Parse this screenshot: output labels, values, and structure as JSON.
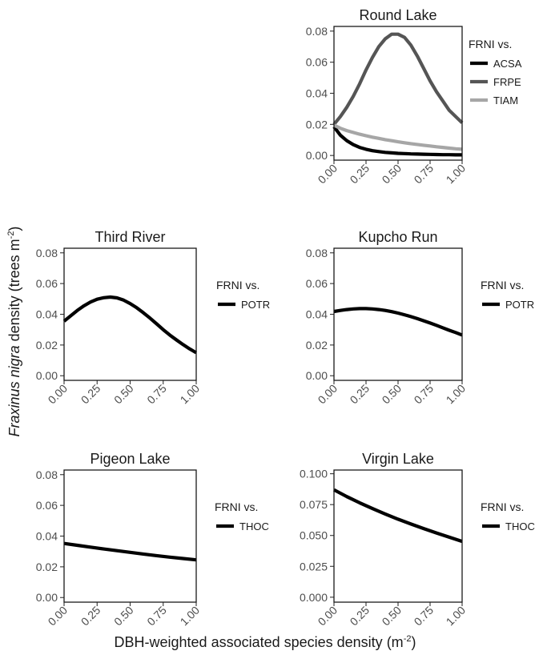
{
  "figure": {
    "xlabel": "DBH-weighted associated species density (m",
    "xlabel_sup": "-2",
    "xlabel_end": ")",
    "ylabel_italic": "Fraxinus nigra",
    "ylabel": " density (trees m",
    "ylabel_sup": "-2",
    "ylabel_end": ")"
  },
  "chart_data": [
    {
      "type": "line",
      "title": "Round Lake",
      "legend_title": "FRNI vs.",
      "xlim": [
        0,
        1
      ],
      "ylim": [
        -0.003,
        0.083
      ],
      "xticks": [
        "0.00",
        "0.25",
        "0.50",
        "0.75",
        "1.00"
      ],
      "yticks": [
        "0.00",
        "0.02",
        "0.04",
        "0.06",
        "0.08"
      ],
      "x": [
        0,
        0.05,
        0.1,
        0.15,
        0.2,
        0.25,
        0.3,
        0.35,
        0.4,
        0.45,
        0.5,
        0.55,
        0.6,
        0.65,
        0.7,
        0.75,
        0.8,
        0.85,
        0.9,
        0.95,
        1.0
      ],
      "series": [
        {
          "name": "ACSA",
          "color": "#000000",
          "values": [
            0.0185,
            0.013,
            0.0095,
            0.007,
            0.0052,
            0.004,
            0.0031,
            0.0025,
            0.002,
            0.0017,
            0.0014,
            0.0012,
            0.001,
            0.0009,
            0.0008,
            0.0007,
            0.0006,
            0.0005,
            0.0005,
            0.0004,
            0.0004
          ]
        },
        {
          "name": "FRPE",
          "color": "#555555",
          "values": [
            0.02,
            0.025,
            0.031,
            0.038,
            0.046,
            0.055,
            0.063,
            0.07,
            0.075,
            0.078,
            0.078,
            0.076,
            0.071,
            0.064,
            0.056,
            0.048,
            0.041,
            0.035,
            0.029,
            0.025,
            0.021
          ]
        },
        {
          "name": "TIAM",
          "color": "#a6a6a6",
          "values": [
            0.0195,
            0.0175,
            0.016,
            0.0148,
            0.0137,
            0.0127,
            0.0118,
            0.011,
            0.0102,
            0.0095,
            0.0088,
            0.0082,
            0.0076,
            0.0071,
            0.0066,
            0.0061,
            0.0056,
            0.0052,
            0.0047,
            0.0043,
            0.004
          ]
        }
      ]
    },
    {
      "type": "line",
      "title": "Third River",
      "legend_title": "FRNI vs.",
      "xlim": [
        0,
        1
      ],
      "ylim": [
        -0.003,
        0.083
      ],
      "xticks": [
        "0.00",
        "0.25",
        "0.50",
        "0.75",
        "1.00"
      ],
      "yticks": [
        "0.00",
        "0.02",
        "0.04",
        "0.06",
        "0.08"
      ],
      "x": [
        0,
        0.05,
        0.1,
        0.15,
        0.2,
        0.25,
        0.3,
        0.35,
        0.4,
        0.45,
        0.5,
        0.55,
        0.6,
        0.65,
        0.7,
        0.75,
        0.8,
        0.85,
        0.9,
        0.95,
        1.0
      ],
      "series": [
        {
          "name": "POTR",
          "color": "#000000",
          "values": [
            0.0355,
            0.039,
            0.0425,
            0.0455,
            0.048,
            0.0498,
            0.0508,
            0.0512,
            0.0507,
            0.0492,
            0.047,
            0.0442,
            0.041,
            0.0375,
            0.0338,
            0.03,
            0.0265,
            0.0233,
            0.0203,
            0.0175,
            0.015
          ]
        }
      ]
    },
    {
      "type": "line",
      "title": "Kupcho Run",
      "legend_title": "FRNI vs.",
      "xlim": [
        0,
        1
      ],
      "ylim": [
        -0.003,
        0.083
      ],
      "xticks": [
        "0.00",
        "0.25",
        "0.50",
        "0.75",
        "1.00"
      ],
      "yticks": [
        "0.00",
        "0.02",
        "0.04",
        "0.06",
        "0.08"
      ],
      "x": [
        0,
        0.05,
        0.1,
        0.15,
        0.2,
        0.25,
        0.3,
        0.35,
        0.4,
        0.45,
        0.5,
        0.55,
        0.6,
        0.65,
        0.7,
        0.75,
        0.8,
        0.85,
        0.9,
        0.95,
        1.0
      ],
      "series": [
        {
          "name": "POTR",
          "color": "#000000",
          "values": [
            0.0418,
            0.0425,
            0.0431,
            0.0435,
            0.0437,
            0.0437,
            0.0435,
            0.0431,
            0.0425,
            0.0417,
            0.0408,
            0.0397,
            0.0385,
            0.0372,
            0.0358,
            0.0343,
            0.0328,
            0.0312,
            0.0296,
            0.0281,
            0.0265
          ]
        }
      ]
    },
    {
      "type": "line",
      "title": "Pigeon Lake",
      "legend_title": "FRNI vs.",
      "xlim": [
        0,
        1
      ],
      "ylim": [
        -0.003,
        0.083
      ],
      "xticks": [
        "0.00",
        "0.25",
        "0.50",
        "0.75",
        "1.00"
      ],
      "yticks": [
        "0.00",
        "0.02",
        "0.04",
        "0.06",
        "0.08"
      ],
      "x": [
        0,
        0.1,
        0.2,
        0.3,
        0.4,
        0.5,
        0.6,
        0.7,
        0.8,
        0.9,
        1.0
      ],
      "series": [
        {
          "name": "THOC",
          "color": "#000000",
          "values": [
            0.0352,
            0.034,
            0.0328,
            0.0316,
            0.0305,
            0.0294,
            0.0283,
            0.0273,
            0.0263,
            0.0254,
            0.0245
          ]
        }
      ]
    },
    {
      "type": "line",
      "title": "Virgin Lake",
      "legend_title": "FRNI vs.",
      "xlim": [
        0,
        1
      ],
      "ylim": [
        -0.004,
        0.103
      ],
      "xticks": [
        "0.00",
        "0.25",
        "0.50",
        "0.75",
        "1.00"
      ],
      "yticks": [
        "0.000",
        "0.025",
        "0.050",
        "0.075",
        "0.100"
      ],
      "x": [
        0,
        0.1,
        0.2,
        0.3,
        0.4,
        0.5,
        0.6,
        0.7,
        0.8,
        0.9,
        1.0
      ],
      "series": [
        {
          "name": "THOC",
          "color": "#000000",
          "values": [
            0.087,
            0.0815,
            0.0765,
            0.0718,
            0.0674,
            0.0632,
            0.0593,
            0.0556,
            0.052,
            0.0486,
            0.0452
          ]
        }
      ]
    }
  ]
}
